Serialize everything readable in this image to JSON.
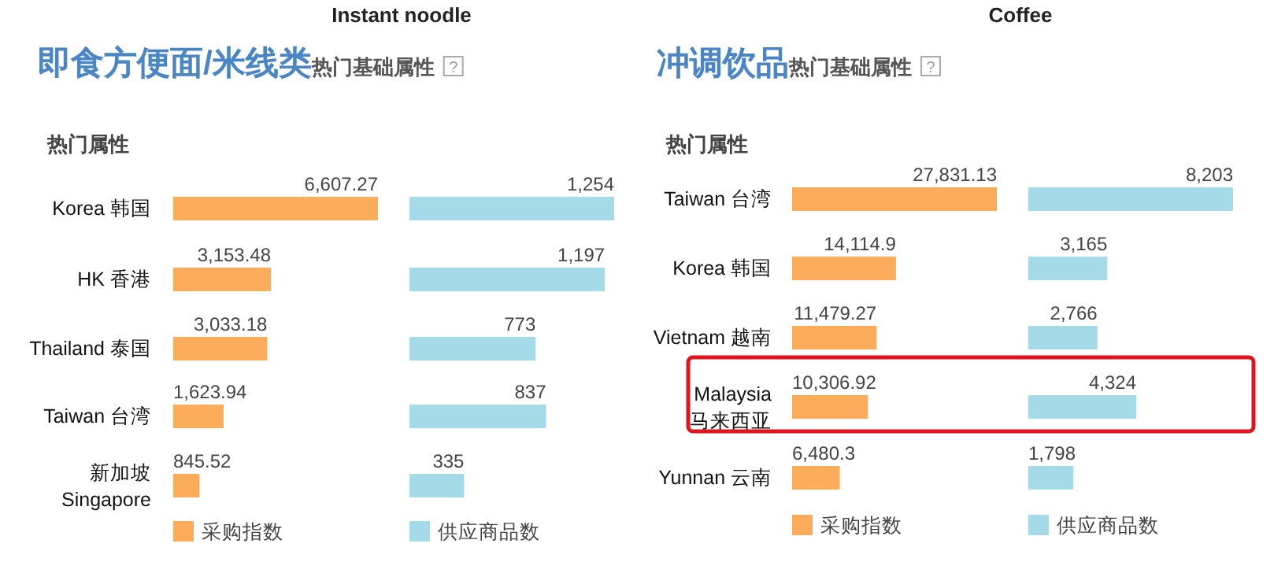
{
  "chart_data": [
    {
      "type": "bar",
      "orientation": "horizontal",
      "title": "Instant noodle",
      "subtitle": "即食方便面/米线类",
      "annotations": [
        "热门基础属性",
        "?",
        "热门属性"
      ],
      "categories": [
        "Korea 韩国",
        "HK 香港",
        "Thailand 泰国",
        "Taiwan 台湾",
        "新加坡\nSingapore"
      ],
      "series": [
        {
          "name": "采购指数",
          "color": "#fbac5a",
          "values": [
            6607.27,
            3153.48,
            3033.18,
            1623.94,
            845.52
          ],
          "value_labels": [
            "6,607.27",
            "3,153.48",
            "3,033.18",
            "1,623.94",
            "845.52"
          ]
        }
      ],
      "legend": "bottom"
    },
    {
      "type": "bar",
      "orientation": "horizontal",
      "categories": [
        null,
        null,
        null,
        null,
        null
      ],
      "series": [
        {
          "name": "供应商品数",
          "color": "#a5dbe9",
          "values": [
            1254,
            1197,
            773,
            837,
            335
          ],
          "value_labels": [
            "1,254",
            "1,197",
            "773",
            "837",
            "335"
          ]
        }
      ],
      "legend": "bottom"
    },
    {
      "type": "bar",
      "orientation": "horizontal",
      "title": "Coffee",
      "subtitle": "冲调饮品",
      "annotations": [
        "热门基础属性",
        "?",
        "热门属性"
      ],
      "categories": [
        "Taiwan 台湾",
        "Korea 韩国",
        "Vietnam 越南",
        "Malaysia\n马来西亚",
        "Yunnan 云南"
      ],
      "series": [
        {
          "name": "采购指数",
          "color": "#fbac5a",
          "values": [
            27831.13,
            14114.9,
            11479.27,
            10306.92,
            6480.3
          ],
          "value_labels": [
            "27,831.13",
            "14,114.9",
            "11,479.27",
            "10,306.92",
            "6,480.3"
          ]
        }
      ],
      "legend": "bottom"
    },
    {
      "type": "bar",
      "orientation": "horizontal",
      "categories": [
        null,
        null,
        null,
        null,
        null
      ],
      "series": [
        {
          "name": "供应商品数",
          "color": "#a5dbe9",
          "values": [
            8203,
            3165,
            2766,
            4324,
            1798
          ],
          "value_labels": [
            "8,203",
            "3,165",
            "2,766",
            "4,324",
            "1,798"
          ]
        }
      ],
      "legend": "bottom"
    }
  ]
}
